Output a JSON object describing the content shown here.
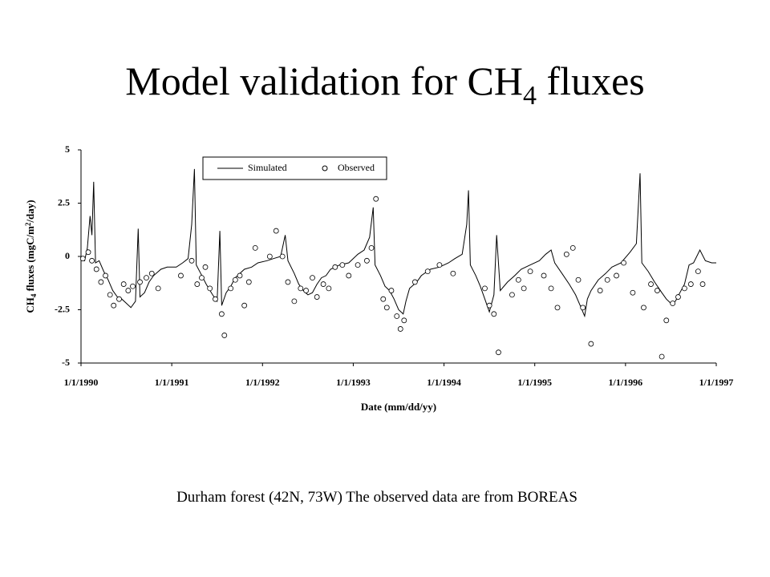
{
  "chart_data": {
    "type": "line",
    "title": [
      "Model validation for CH",
      "4",
      " fluxes"
    ],
    "y_label": [
      "CH",
      "4",
      " fluxes (mgC/m",
      "2",
      "/day)"
    ],
    "x_label": "Date (mm/dd/yy)",
    "caption": "Durham forest (42N, 73W) The observed data are from BOREAS",
    "xlim": [
      1990,
      1997
    ],
    "xticks": [
      {
        "value": 1990,
        "label": "1/1/1990"
      },
      {
        "value": 1991,
        "label": "1/1/1991"
      },
      {
        "value": 1992,
        "label": "1/1/1992"
      },
      {
        "value": 1993,
        "label": "1/1/1993"
      },
      {
        "value": 1994,
        "label": "1/1/1994"
      },
      {
        "value": 1995,
        "label": "1/1/1995"
      },
      {
        "value": 1996,
        "label": "1/1/1996"
      },
      {
        "value": 1997,
        "label": "1/1/1997"
      }
    ],
    "ylim": [
      -5,
      5
    ],
    "yticks": [
      -5,
      -2.5,
      0,
      2.5,
      5
    ],
    "legend": "top-left",
    "series": [
      {
        "name": "Simulated",
        "type": "line",
        "color": "#000000",
        "x": [
          1990.0,
          1990.04,
          1990.07,
          1990.1,
          1990.12,
          1990.14,
          1990.16,
          1990.2,
          1990.25,
          1990.3,
          1990.35,
          1990.4,
          1990.45,
          1990.5,
          1990.55,
          1990.6,
          1990.63,
          1990.65,
          1990.7,
          1990.75,
          1990.8,
          1990.88,
          1990.95,
          1991.05,
          1991.12,
          1991.18,
          1991.22,
          1991.25,
          1991.27,
          1991.32,
          1991.38,
          1991.45,
          1991.5,
          1991.53,
          1991.55,
          1991.6,
          1991.65,
          1991.7,
          1991.75,
          1991.8,
          1991.88,
          1991.95,
          1992.05,
          1992.12,
          1992.2,
          1992.25,
          1992.28,
          1992.35,
          1992.4,
          1992.45,
          1992.5,
          1992.55,
          1992.6,
          1992.65,
          1992.7,
          1992.75,
          1992.85,
          1992.95,
          1993.05,
          1993.12,
          1993.18,
          1993.22,
          1993.24,
          1993.3,
          1993.35,
          1993.4,
          1993.45,
          1993.5,
          1993.55,
          1993.58,
          1993.62,
          1993.7,
          1993.75,
          1993.85,
          1993.95,
          1994.05,
          1994.12,
          1994.2,
          1994.25,
          1994.27,
          1994.29,
          1994.35,
          1994.4,
          1994.45,
          1994.5,
          1994.55,
          1994.58,
          1994.62,
          1994.7,
          1994.78,
          1994.85,
          1994.95,
          1995.05,
          1995.12,
          1995.18,
          1995.22,
          1995.3,
          1995.38,
          1995.45,
          1995.5,
          1995.55,
          1995.58,
          1995.62,
          1995.7,
          1995.78,
          1995.85,
          1995.95,
          1996.05,
          1996.12,
          1996.16,
          1996.18,
          1996.25,
          1996.32,
          1996.4,
          1996.45,
          1996.5,
          1996.55,
          1996.6,
          1996.65,
          1996.7,
          1996.75,
          1996.82,
          1996.88,
          1996.95,
          1997.0
        ],
        "values": [
          -0.1,
          -0.2,
          0.4,
          1.9,
          1.0,
          3.5,
          -0.3,
          -0.2,
          -0.7,
          -1.1,
          -1.6,
          -1.9,
          -2.0,
          -2.2,
          -2.4,
          -2.1,
          1.3,
          -1.9,
          -1.7,
          -1.2,
          -0.9,
          -0.6,
          -0.5,
          -0.5,
          -0.3,
          -0.1,
          1.5,
          4.1,
          -0.4,
          -0.8,
          -1.3,
          -1.8,
          -2.1,
          1.2,
          -2.3,
          -1.7,
          -1.4,
          -1.0,
          -0.8,
          -0.6,
          -0.5,
          -0.3,
          -0.2,
          -0.1,
          0.0,
          1.0,
          -0.2,
          -0.8,
          -1.3,
          -1.6,
          -1.8,
          -1.7,
          -1.3,
          -1.0,
          -0.9,
          -0.6,
          -0.4,
          -0.3,
          0.1,
          0.3,
          0.9,
          2.3,
          -0.4,
          -0.9,
          -1.4,
          -1.6,
          -2.0,
          -2.5,
          -2.7,
          -2.1,
          -1.5,
          -1.2,
          -0.9,
          -0.6,
          -0.5,
          -0.3,
          -0.1,
          0.1,
          1.5,
          3.1,
          -0.4,
          -0.9,
          -1.4,
          -2.0,
          -2.6,
          -1.8,
          1.0,
          -1.6,
          -1.2,
          -0.9,
          -0.6,
          -0.4,
          -0.2,
          0.1,
          0.3,
          -0.3,
          -0.8,
          -1.3,
          -1.8,
          -2.3,
          -2.8,
          -2.0,
          -1.6,
          -1.1,
          -0.8,
          -0.5,
          -0.3,
          0.2,
          0.6,
          3.9,
          -0.3,
          -0.7,
          -1.2,
          -1.7,
          -2.0,
          -2.2,
          -2.1,
          -1.7,
          -1.3,
          -0.4,
          -0.3,
          0.3,
          -0.2,
          -0.3,
          -0.3
        ]
      },
      {
        "name": "Observed",
        "type": "scatter",
        "color": "#000000",
        "x": [
          1990.02,
          1990.08,
          1990.12,
          1990.17,
          1990.22,
          1990.27,
          1990.32,
          1990.36,
          1990.42,
          1990.47,
          1990.52,
          1990.57,
          1990.65,
          1990.72,
          1990.78,
          1990.85,
          1991.1,
          1991.22,
          1991.28,
          1991.33,
          1991.37,
          1991.42,
          1991.48,
          1991.55,
          1991.58,
          1991.65,
          1991.7,
          1991.75,
          1991.8,
          1991.85,
          1991.92,
          1992.08,
          1992.15,
          1992.22,
          1992.28,
          1992.35,
          1992.42,
          1992.48,
          1992.55,
          1992.6,
          1992.67,
          1992.73,
          1992.8,
          1992.88,
          1992.95,
          1993.05,
          1993.15,
          1993.2,
          1993.25,
          1993.33,
          1993.37,
          1993.42,
          1993.48,
          1993.52,
          1993.56,
          1993.68,
          1993.82,
          1993.95,
          1994.1,
          1994.45,
          1994.5,
          1994.55,
          1994.6,
          1994.75,
          1994.82,
          1994.88,
          1994.95,
          1995.1,
          1995.18,
          1995.25,
          1995.35,
          1995.42,
          1995.48,
          1995.53,
          1995.62,
          1995.72,
          1995.8,
          1995.9,
          1995.98,
          1996.08,
          1996.2,
          1996.28,
          1996.35,
          1996.4,
          1996.45,
          1996.52,
          1996.58,
          1996.65,
          1996.72,
          1996.8,
          1996.85
        ],
        "values": [
          -0.1,
          0.2,
          -0.2,
          -0.6,
          -1.2,
          -0.9,
          -1.8,
          -2.3,
          -2.0,
          -1.3,
          -1.6,
          -1.4,
          -1.2,
          -1.0,
          -0.8,
          -1.5,
          -0.9,
          -0.2,
          -1.3,
          -1.0,
          -0.5,
          -1.5,
          -2.0,
          -2.7,
          -3.7,
          -1.5,
          -1.1,
          -0.9,
          -2.3,
          -1.2,
          0.4,
          0.0,
          1.2,
          0.0,
          -1.2,
          -2.1,
          -1.5,
          -1.6,
          -1.0,
          -1.9,
          -1.3,
          -1.5,
          -0.5,
          -0.4,
          -0.9,
          -0.4,
          -0.2,
          0.4,
          2.7,
          -2.0,
          -2.4,
          -1.6,
          -2.8,
          -3.4,
          -3.0,
          -1.2,
          -0.7,
          -0.4,
          -0.8,
          -1.5,
          -2.3,
          -2.7,
          -4.5,
          -1.8,
          -1.1,
          -1.5,
          -0.7,
          -0.9,
          -1.5,
          -2.4,
          0.1,
          0.4,
          -1.1,
          -2.4,
          -4.1,
          -1.6,
          -1.1,
          -0.9,
          -0.3,
          -1.7,
          -2.4,
          -1.3,
          -1.6,
          -4.7,
          -3.0,
          -2.2,
          -1.9,
          -1.5,
          -1.3,
          -0.7,
          -1.3
        ]
      }
    ]
  }
}
